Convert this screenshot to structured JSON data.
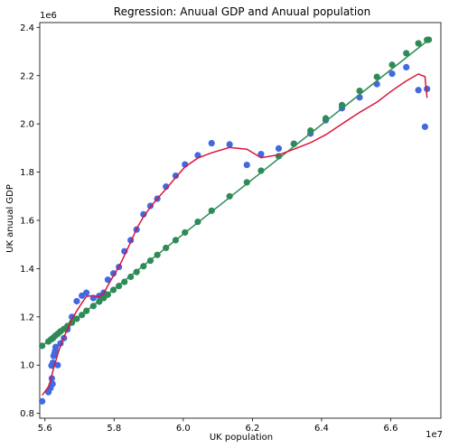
{
  "chart_data": {
    "type": "scatter",
    "title": "Regression: Anuual GDP and Anuual population",
    "xlabel": "UK population",
    "ylabel": "UK anuual GDP",
    "x_offset_text": "1e7",
    "y_offset_text": "1e6",
    "xlim": [
      55850000,
      67450000
    ],
    "ylim": [
      780000,
      2420000
    ],
    "x_ticks": [
      56000000,
      58000000,
      60000000,
      62000000,
      64000000,
      66000000
    ],
    "x_tick_labels": [
      "5.6",
      "5.8",
      "6.0",
      "6.2",
      "6.4",
      "6.6"
    ],
    "y_ticks": [
      800000,
      1000000,
      1200000,
      1400000,
      1600000,
      1800000,
      2000000,
      2200000,
      2400000
    ],
    "y_tick_labels": [
      "0.8",
      "1.0",
      "1.2",
      "1.4",
      "1.6",
      "1.8",
      "2.0",
      "2.2",
      "2.4"
    ],
    "grid": false,
    "colors": {
      "actual_points": "#4169e1",
      "fitted_points": "#2e8b57",
      "linear_line": "#2e8b57",
      "nonlinear_line": "#dc143c"
    },
    "series": [
      {
        "kind": "scatter",
        "color": "#4169e1",
        "x": [
          55920000,
          56100000,
          56160000,
          56200000,
          56190000,
          56230000,
          56220000,
          56250000,
          56280000,
          56300000,
          56310000,
          56370000,
          56450000,
          56550000,
          56650000,
          56780000,
          56920000,
          57070000,
          57200000,
          57400000,
          57570000,
          57700000,
          57820000,
          57980000,
          58140000,
          58300000,
          58480000,
          58650000,
          58850000,
          59050000,
          59250000,
          59500000,
          59780000,
          60050000,
          60420000,
          60820000,
          61340000,
          61840000,
          62250000,
          62760000,
          63200000,
          63680000,
          64120000,
          64590000,
          65100000,
          65600000,
          66040000,
          66450000,
          66800000,
          66990000,
          67050000
        ],
        "y": [
          850000,
          888000,
          905000,
          945000,
          998000,
          1010000,
          922000,
          1038000,
          1050000,
          1060000,
          1075000,
          1000000,
          1090000,
          1112000,
          1148000,
          1200000,
          1265000,
          1288000,
          1300000,
          1278000,
          1287000,
          1300000,
          1354000,
          1380000,
          1407000,
          1472000,
          1518000,
          1562000,
          1625000,
          1660000,
          1690000,
          1740000,
          1785000,
          1832000,
          1870000,
          1920000,
          1915000,
          1830000,
          1875000,
          1898000,
          1918000,
          1960000,
          2015000,
          2065000,
          2110000,
          2165000,
          2208000,
          2235000,
          2140000,
          1988000,
          2145000
        ]
      },
      {
        "kind": "scatter",
        "color": "#2e8b57",
        "x": [
          55920000,
          56100000,
          56180000,
          56230000,
          56300000,
          56370000,
          56450000,
          56550000,
          56650000,
          56780000,
          56920000,
          57070000,
          57200000,
          57400000,
          57570000,
          57700000,
          57820000,
          57980000,
          58140000,
          58300000,
          58480000,
          58650000,
          58850000,
          59050000,
          59250000,
          59500000,
          59780000,
          60050000,
          60420000,
          60820000,
          61340000,
          61840000,
          62250000,
          62760000,
          63200000,
          63680000,
          64120000,
          64590000,
          65100000,
          65600000,
          66040000,
          66450000,
          66800000,
          67050000,
          67100000
        ],
        "y": [
          1080000,
          1098000,
          1107000,
          1112000,
          1122000,
          1130000,
          1140000,
          1150000,
          1162000,
          1176000,
          1192000,
          1208000,
          1225000,
          1245000,
          1263000,
          1278000,
          1292000,
          1312000,
          1328000,
          1345000,
          1366000,
          1386000,
          1410000,
          1433000,
          1457000,
          1486000,
          1518000,
          1550000,
          1594000,
          1640000,
          1700000,
          1758000,
          1806000,
          1866000,
          1917000,
          1972000,
          2023000,
          2078000,
          2137000,
          2195000,
          2245000,
          2293000,
          2334000,
          2348000,
          2349000
        ]
      },
      {
        "kind": "line",
        "color": "#2e8b57",
        "x": [
          55920000,
          67100000
        ],
        "y": [
          1080000,
          2349000
        ]
      },
      {
        "kind": "line",
        "color": "#dc143c",
        "x": [
          55920000,
          56100000,
          56180000,
          56230000,
          56300000,
          56370000,
          56450000,
          56550000,
          56650000,
          56780000,
          56920000,
          57070000,
          57200000,
          57400000,
          57570000,
          57700000,
          57820000,
          57980000,
          58140000,
          58300000,
          58480000,
          58650000,
          58850000,
          59050000,
          59250000,
          59500000,
          59780000,
          60050000,
          60420000,
          60820000,
          61340000,
          61840000,
          62250000,
          62760000,
          63200000,
          63680000,
          64120000,
          64590000,
          65100000,
          65600000,
          66040000,
          66450000,
          66800000,
          66990000,
          67050000
        ],
        "y": [
          875000,
          910000,
          945000,
          975000,
          1010000,
          1045000,
          1080000,
          1115000,
          1150000,
          1190000,
          1225000,
          1258000,
          1285000,
          1288000,
          1283000,
          1298000,
          1330000,
          1370000,
          1408000,
          1455000,
          1510000,
          1565000,
          1615000,
          1655000,
          1690000,
          1730000,
          1778000,
          1822000,
          1858000,
          1880000,
          1902000,
          1895000,
          1860000,
          1872000,
          1895000,
          1922000,
          1955000,
          2000000,
          2048000,
          2090000,
          2138000,
          2178000,
          2207000,
          2196000,
          2108000
        ]
      }
    ]
  }
}
